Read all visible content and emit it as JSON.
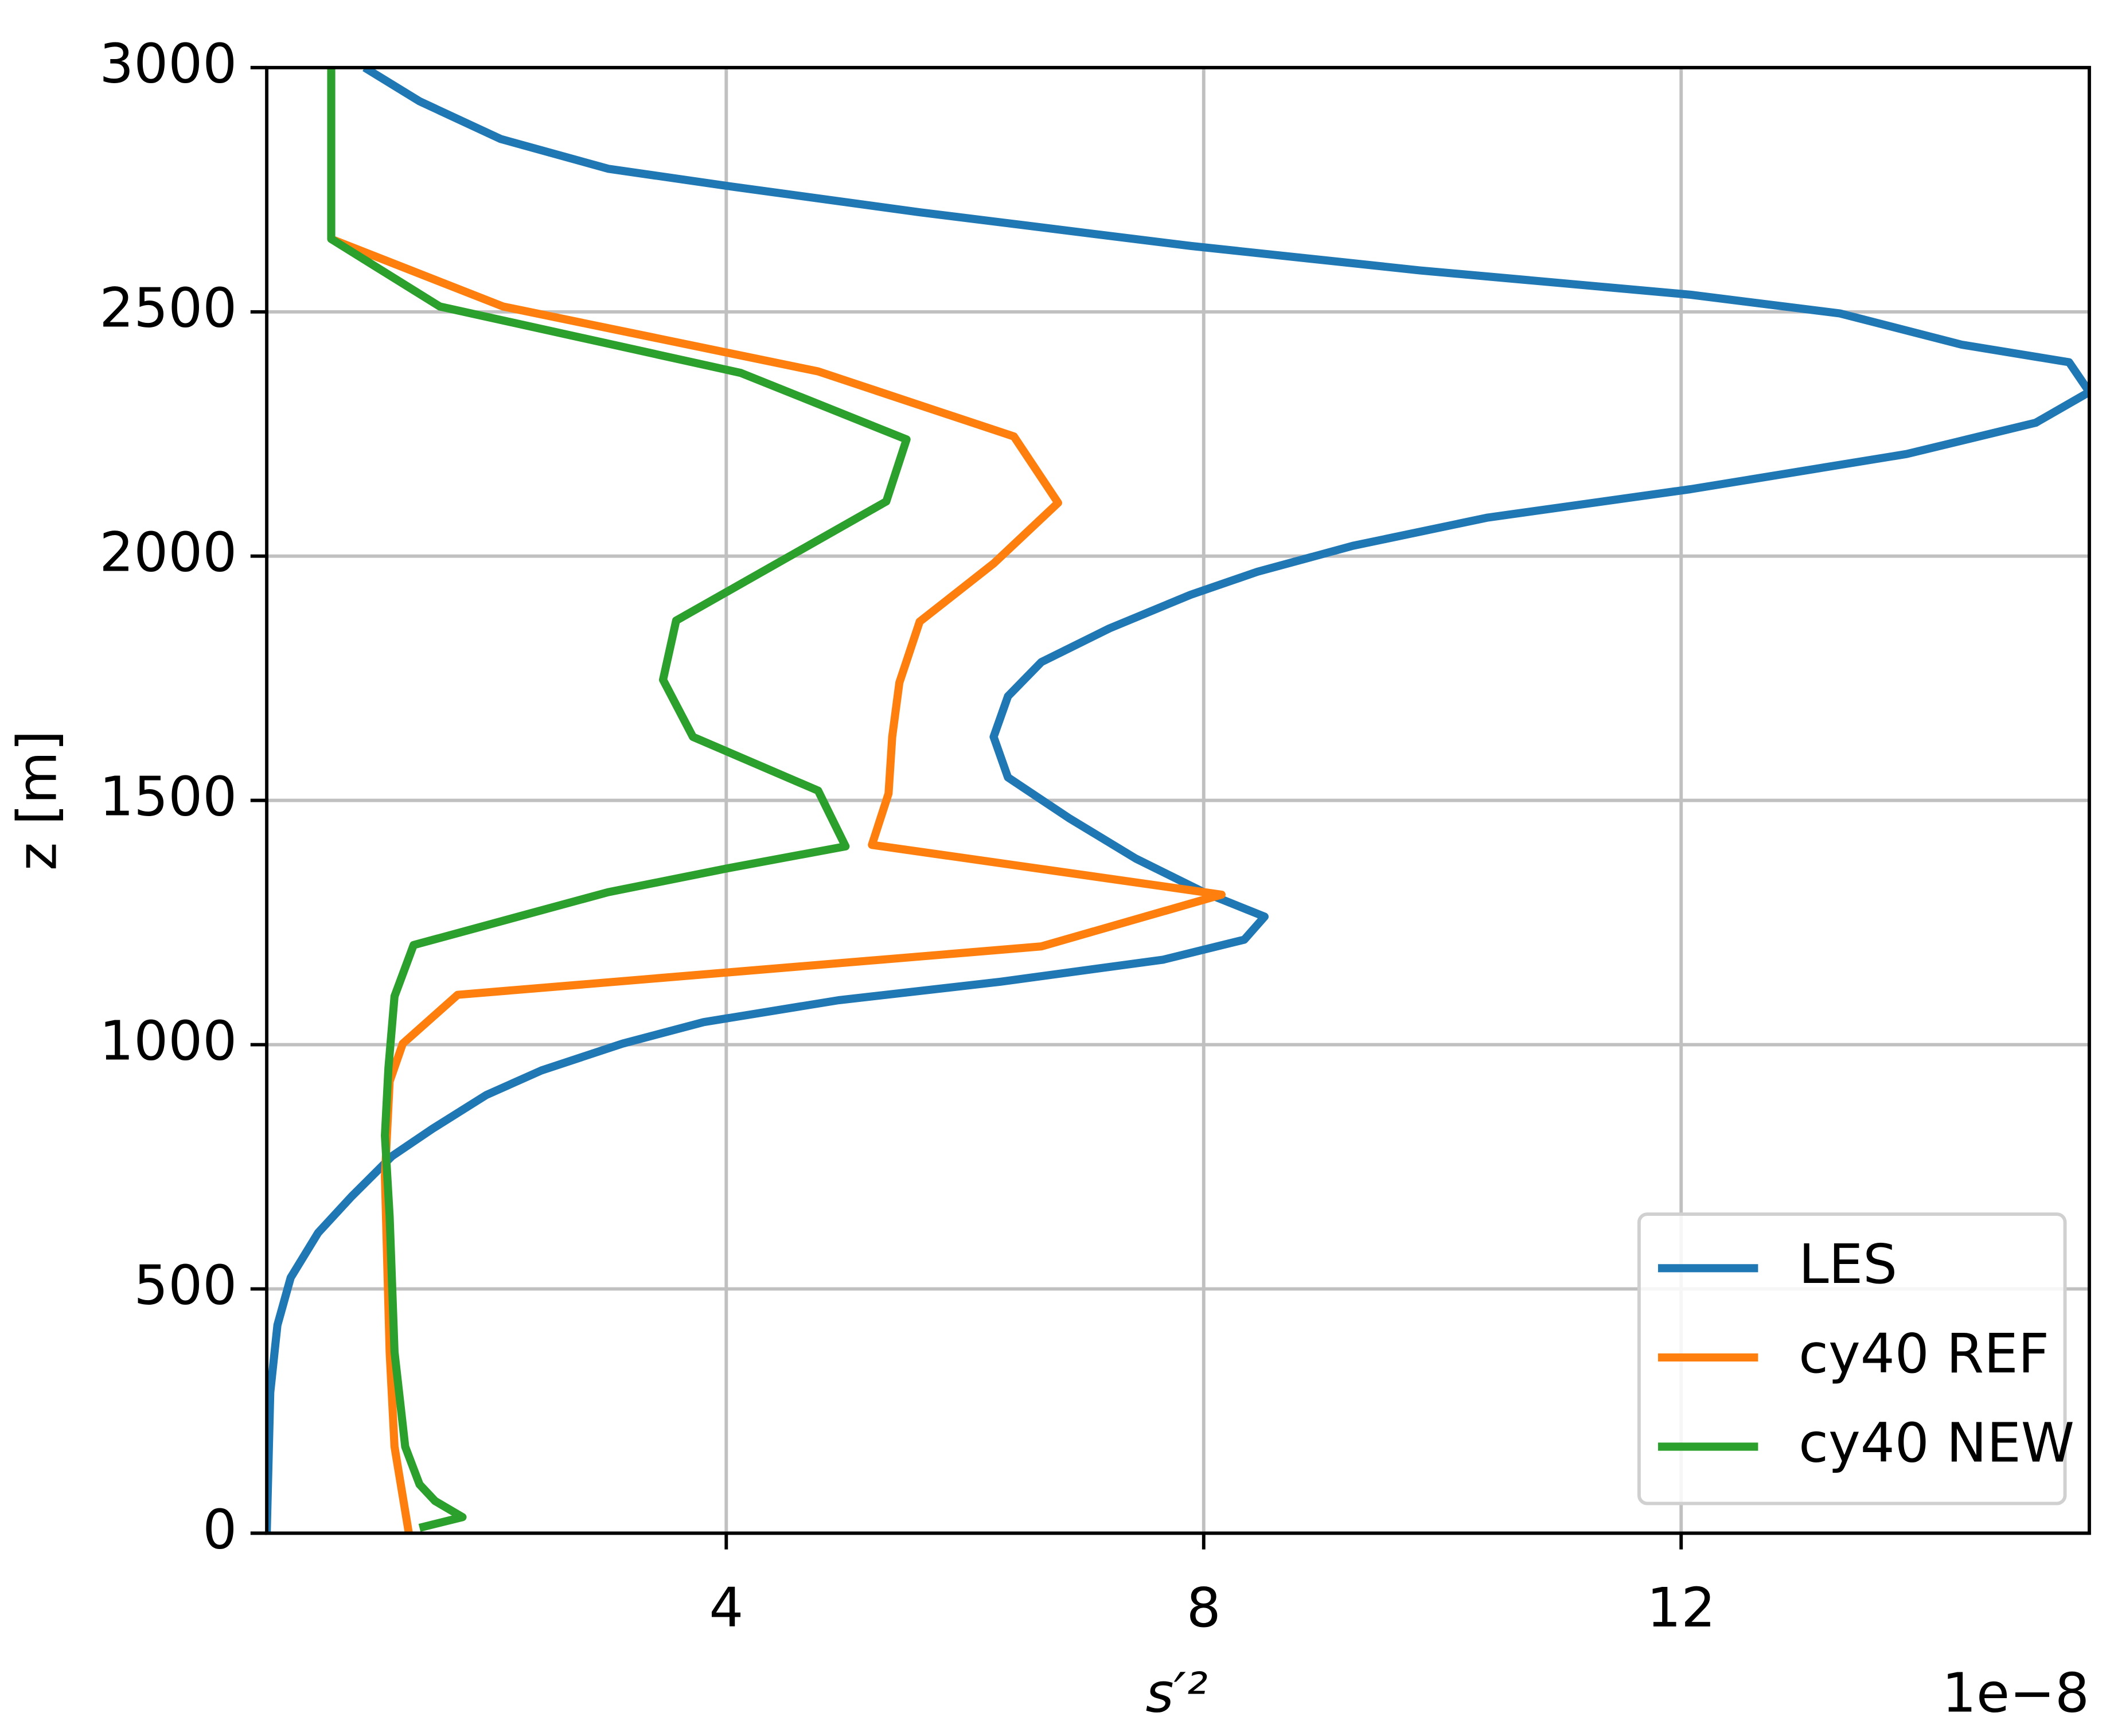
{
  "chart_data": {
    "type": "line",
    "x_label": "s′²",
    "x_offset_label": "1e−8",
    "y_label": "z [m]",
    "xlim": [
      0.15,
      15.42
    ],
    "xticks": [
      4,
      8,
      12
    ],
    "ylim": [
      0,
      3000
    ],
    "yticks": [
      0,
      500,
      1000,
      1500,
      2000,
      2500,
      3000
    ],
    "grid": true,
    "legend": "lower right",
    "series": [
      {
        "name": "LES",
        "color": "#1f77b4",
        "values": [
          0.15,
          0.18,
          0.24,
          0.35,
          0.58,
          0.86,
          1.2,
          1.54,
          1.99,
          2.45,
          3.13,
          3.81,
          4.94,
          6.3,
          7.66,
          8.34,
          8.51,
          8.0,
          7.43,
          6.87,
          6.36,
          6.24,
          6.36,
          6.64,
          7.21,
          7.89,
          8.45,
          9.25,
          10.38,
          12.08,
          13.89,
          14.97,
          15.42,
          15.25,
          14.35,
          13.33,
          12.08,
          9.81,
          7.89,
          5.62,
          4.03,
          3.01,
          2.11,
          1.43,
          0.97
        ],
        "z": [
          0,
          288,
          426,
          523,
          615,
          689,
          772,
          828,
          897,
          947,
          1002,
          1046,
          1091,
          1129,
          1174,
          1215,
          1262,
          1312,
          1381,
          1464,
          1547,
          1630,
          1713,
          1783,
          1852,
          1921,
          1968,
          2021,
          2079,
          2137,
          2209,
          2273,
          2336,
          2397,
          2433,
          2497,
          2535,
          2585,
          2635,
          2704,
          2757,
          2793,
          2854,
          2931,
          3000
        ]
      },
      {
        "name": "cy40 REF",
        "color": "#ff7f0e",
        "values": [
          1.34,
          1.22,
          1.18,
          1.14,
          1.18,
          1.29,
          1.75,
          6.64,
          8.15,
          5.22,
          5.36,
          5.39,
          5.45,
          5.62,
          6.24,
          6.78,
          6.41,
          4.77,
          2.13,
          0.69
        ],
        "z": [
          0,
          177,
          371,
          731,
          925,
          1002,
          1102,
          1201,
          1307,
          1409,
          1514,
          1630,
          1741,
          1866,
          1985,
          2109,
          2245,
          2378,
          2511,
          2649
        ]
      },
      {
        "name": "cy40 NEW",
        "color": "#2ca02c",
        "values": [
          1.43,
          1.79,
          1.56,
          1.43,
          1.31,
          1.22,
          1.18,
          1.14,
          1.17,
          1.22,
          1.38,
          3.01,
          4.03,
          5.0,
          4.77,
          3.72,
          3.47,
          3.58,
          5.34,
          5.51,
          4.12,
          1.6,
          0.69,
          0.69
        ],
        "z": [
          11,
          33,
          66,
          100,
          177,
          371,
          648,
          814,
          952,
          1099,
          1204,
          1312,
          1362,
          1406,
          1520,
          1630,
          1747,
          1868,
          2112,
          2239,
          2375,
          2511,
          2649,
          3000
        ]
      }
    ]
  }
}
